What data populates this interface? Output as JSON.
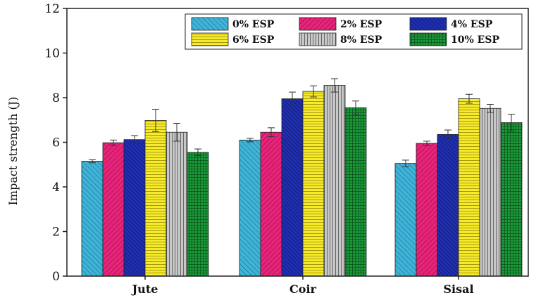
{
  "chart_data": {
    "type": "bar",
    "ylabel": "Impact strength (J)",
    "xlabel": "",
    "ylim": [
      0,
      12
    ],
    "yticks": [
      "0",
      "2",
      "4",
      "6",
      "8",
      "10",
      "12"
    ],
    "categories": [
      "Jute",
      "Coir",
      "Sisal"
    ],
    "legend_position": "top-right",
    "series": [
      {
        "name": "0% ESP",
        "color": "#3fb4d8",
        "pattern": "diag-back",
        "values": [
          5.15,
          6.1,
          5.05
        ],
        "errors": [
          0.07,
          0.08,
          0.15
        ]
      },
      {
        "name": "2% ESP",
        "color": "#e8247a",
        "pattern": "diag-fwd",
        "values": [
          5.98,
          6.45,
          5.95
        ],
        "errors": [
          0.12,
          0.2,
          0.1
        ]
      },
      {
        "name": "4% ESP",
        "color": "#1f2fb0",
        "pattern": "diag-dense",
        "values": [
          6.12,
          7.95,
          6.35
        ],
        "errors": [
          0.18,
          0.3,
          0.2
        ]
      },
      {
        "name": "6% ESP",
        "color": "#f7ea2a",
        "pattern": "horizontal",
        "values": [
          6.98,
          8.28,
          7.95
        ],
        "errors": [
          0.5,
          0.25,
          0.2
        ]
      },
      {
        "name": "8% ESP",
        "color": "#b4b4b4",
        "pattern": "vertical",
        "values": [
          6.45,
          8.55,
          7.52
        ],
        "errors": [
          0.4,
          0.3,
          0.18
        ]
      },
      {
        "name": "10% ESP",
        "color": "#1c9a3a",
        "pattern": "grid",
        "values": [
          5.55,
          7.55,
          6.88
        ],
        "errors": [
          0.15,
          0.3,
          0.38
        ]
      }
    ]
  }
}
